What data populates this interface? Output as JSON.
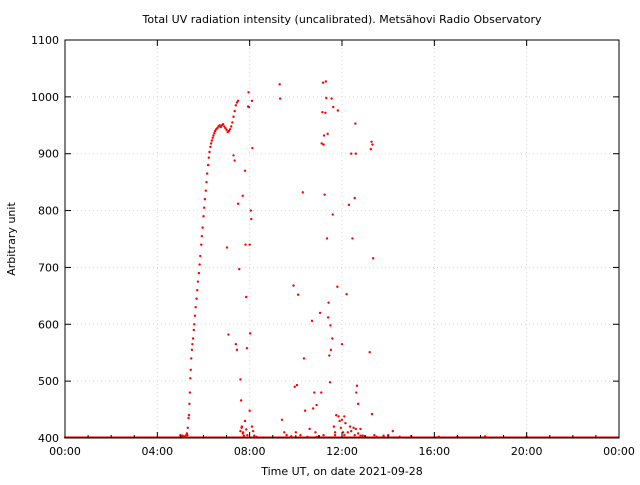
{
  "chart_data": {
    "type": "scatter",
    "title": "Total UV radiation intensity (uncalibrated). Metsähovi Radio Observatory",
    "xlabel": "Time UT, on date 2021-09-28",
    "ylabel": "Arbitrary unit",
    "xlim": [
      0,
      24
    ],
    "ylim": [
      400,
      1100
    ],
    "x_ticks": [
      0,
      4,
      8,
      12,
      16,
      20,
      24
    ],
    "x_tick_labels": [
      "00:00",
      "04:00",
      "08:00",
      "12:00",
      "16:00",
      "20:00",
      "00:00"
    ],
    "y_ticks": [
      400,
      500,
      600,
      700,
      800,
      900,
      1000,
      1100
    ],
    "y_tick_labels": [
      "400",
      "500",
      "600",
      "700",
      "800",
      "900",
      "1000",
      "1100"
    ],
    "grid": true,
    "marker_color": "#ff0000",
    "baseline_value": 401,
    "baseline_x_range": [
      0,
      24
    ],
    "series": [
      {
        "points": [
          [
            5.0,
            405
          ],
          [
            5.05,
            403
          ],
          [
            5.1,
            404
          ],
          [
            5.15,
            402
          ],
          [
            5.2,
            403
          ],
          [
            5.25,
            405
          ],
          [
            5.28,
            408
          ],
          [
            5.3,
            405
          ],
          [
            5.32,
            418
          ],
          [
            5.35,
            435
          ],
          [
            5.37,
            440
          ],
          [
            5.39,
            460
          ],
          [
            5.41,
            480
          ],
          [
            5.43,
            505
          ],
          [
            5.45,
            520
          ],
          [
            5.47,
            540
          ],
          [
            5.5,
            555
          ],
          [
            5.52,
            565
          ],
          [
            5.55,
            575
          ],
          [
            5.58,
            590
          ],
          [
            5.6,
            600
          ],
          [
            5.63,
            615
          ],
          [
            5.66,
            630
          ],
          [
            5.7,
            645
          ],
          [
            5.73,
            660
          ],
          [
            5.76,
            675
          ],
          [
            5.8,
            690
          ],
          [
            5.83,
            705
          ],
          [
            5.86,
            720
          ],
          [
            5.9,
            740
          ],
          [
            5.93,
            755
          ],
          [
            5.96,
            770
          ],
          [
            6.0,
            790
          ],
          [
            6.03,
            805
          ],
          [
            6.06,
            820
          ],
          [
            6.1,
            835
          ],
          [
            6.13,
            850
          ],
          [
            6.16,
            865
          ],
          [
            6.2,
            880
          ],
          [
            6.23,
            893
          ],
          [
            6.26,
            903
          ],
          [
            6.3,
            912
          ],
          [
            6.33,
            918
          ],
          [
            6.36,
            923
          ],
          [
            6.4,
            928
          ],
          [
            6.43,
            932
          ],
          [
            6.47,
            936
          ],
          [
            6.5,
            940
          ],
          [
            6.55,
            943
          ],
          [
            6.6,
            945
          ],
          [
            6.65,
            948
          ],
          [
            6.7,
            950
          ],
          [
            6.75,
            947
          ],
          [
            6.8,
            950
          ],
          [
            6.85,
            952
          ],
          [
            6.9,
            948
          ],
          [
            6.95,
            945
          ],
          [
            7.0,
            942
          ],
          [
            7.05,
            938
          ],
          [
            7.1,
            940
          ],
          [
            7.15,
            943
          ],
          [
            7.2,
            948
          ],
          [
            7.25,
            955
          ],
          [
            7.3,
            965
          ],
          [
            7.35,
            975
          ],
          [
            7.4,
            985
          ],
          [
            7.45,
            990
          ],
          [
            7.5,
            993
          ],
          [
            7.02,
            735
          ],
          [
            7.08,
            582
          ],
          [
            7.3,
            897
          ],
          [
            7.35,
            888
          ],
          [
            7.4,
            565
          ],
          [
            7.45,
            555
          ],
          [
            7.5,
            812
          ],
          [
            7.55,
            697
          ],
          [
            7.6,
            503
          ],
          [
            7.63,
            466
          ],
          [
            7.66,
            420
          ],
          [
            7.7,
            826
          ],
          [
            7.72,
            410
          ],
          [
            7.75,
            404
          ],
          [
            7.8,
            870
          ],
          [
            7.82,
            740
          ],
          [
            7.85,
            648
          ],
          [
            7.88,
            558
          ],
          [
            7.9,
            405
          ],
          [
            7.93,
            983
          ],
          [
            7.95,
            1008
          ],
          [
            7.97,
            982
          ],
          [
            8.0,
            740
          ],
          [
            8.02,
            584
          ],
          [
            8.05,
            800
          ],
          [
            8.07,
            785
          ],
          [
            8.1,
            993
          ],
          [
            8.12,
            910
          ],
          [
            8.15,
            412
          ],
          [
            8.2,
            404
          ],
          [
            8.3,
            402
          ],
          [
            9.3,
            1022
          ],
          [
            9.32,
            997
          ],
          [
            9.4,
            432
          ],
          [
            9.5,
            410
          ],
          [
            9.8,
            403
          ],
          [
            9.9,
            668
          ],
          [
            9.95,
            490
          ],
          [
            10.0,
            410
          ],
          [
            10.05,
            493
          ],
          [
            10.1,
            652
          ],
          [
            10.2,
            405
          ],
          [
            10.3,
            832
          ],
          [
            10.35,
            540
          ],
          [
            10.4,
            448
          ],
          [
            10.5,
            402
          ],
          [
            10.6,
            416
          ],
          [
            10.7,
            606
          ],
          [
            10.75,
            452
          ],
          [
            10.8,
            480
          ],
          [
            10.85,
            410
          ],
          [
            10.9,
            458
          ],
          [
            11.0,
            403
          ],
          [
            11.05,
            620
          ],
          [
            11.1,
            480
          ],
          [
            11.12,
            918
          ],
          [
            11.15,
            973
          ],
          [
            11.18,
            1025
          ],
          [
            11.2,
            916
          ],
          [
            11.22,
            932
          ],
          [
            11.25,
            828
          ],
          [
            11.28,
            972
          ],
          [
            11.3,
            1027
          ],
          [
            11.32,
            998
          ],
          [
            11.35,
            751
          ],
          [
            11.38,
            935
          ],
          [
            11.4,
            612
          ],
          [
            11.42,
            638
          ],
          [
            11.45,
            545
          ],
          [
            11.48,
            498
          ],
          [
            11.5,
            598
          ],
          [
            11.52,
            555
          ],
          [
            11.55,
            997
          ],
          [
            11.58,
            575
          ],
          [
            11.6,
            793
          ],
          [
            11.62,
            982
          ],
          [
            11.65,
            420
          ],
          [
            11.7,
            405
          ],
          [
            11.75,
            440
          ],
          [
            11.8,
            666
          ],
          [
            11.82,
            976
          ],
          [
            11.85,
            438
          ],
          [
            11.9,
            430
          ],
          [
            11.95,
            418
          ],
          [
            12.0,
            565
          ],
          [
            12.05,
            410
          ],
          [
            12.1,
            405
          ],
          [
            12.2,
            653
          ],
          [
            12.25,
            410
          ],
          [
            12.3,
            810
          ],
          [
            12.35,
            420
          ],
          [
            12.4,
            900
          ],
          [
            12.45,
            751
          ],
          [
            12.5,
            418
          ],
          [
            12.55,
            822
          ],
          [
            12.58,
            953
          ],
          [
            12.6,
            900
          ],
          [
            12.62,
            480
          ],
          [
            12.65,
            492
          ],
          [
            12.7,
            460
          ],
          [
            12.8,
            404
          ],
          [
            13.0,
            402
          ],
          [
            13.2,
            551
          ],
          [
            13.25,
            908
          ],
          [
            13.28,
            921
          ],
          [
            13.3,
            442
          ],
          [
            13.32,
            916
          ],
          [
            13.35,
            716
          ],
          [
            13.4,
            405
          ],
          [
            13.5,
            402
          ],
          [
            13.8,
            404
          ],
          [
            14.2,
            412
          ],
          [
            14.5,
            402
          ],
          [
            7.6,
            412
          ],
          [
            7.65,
            418
          ],
          [
            7.7,
            408
          ],
          [
            7.8,
            430
          ],
          [
            7.85,
            415
          ],
          [
            8.0,
            448
          ],
          [
            8.1,
            420
          ],
          [
            9.6,
            405
          ],
          [
            10.9,
            402
          ],
          [
            11.2,
            405
          ],
          [
            11.7,
            410
          ],
          [
            12.0,
            432
          ],
          [
            12.1,
            438
          ],
          [
            12.15,
            426
          ],
          [
            12.4,
            412
          ],
          [
            12.55,
            405
          ],
          [
            12.6,
            416
          ],
          [
            12.7,
            408
          ],
          [
            12.8,
            416
          ],
          [
            12.9,
            404
          ],
          [
            13.0,
            403
          ],
          [
            14.0,
            405
          ],
          [
            15.0,
            403
          ],
          [
            16.2,
            402
          ],
          [
            17.0,
            402
          ],
          [
            18.2,
            403
          ],
          [
            20.0,
            402
          ]
        ]
      }
    ]
  }
}
